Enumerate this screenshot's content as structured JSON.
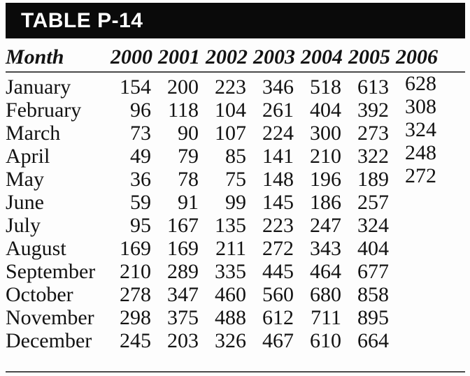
{
  "table": {
    "title": "TABLE P-14",
    "columns": [
      "Month",
      "2000",
      "2001",
      "2002",
      "2003",
      "2004",
      "2005",
      "2006"
    ],
    "rows": [
      {
        "month": "January",
        "values": [
          "154",
          "200",
          "223",
          "346",
          "518",
          "613",
          "628"
        ]
      },
      {
        "month": "February",
        "values": [
          "96",
          "118",
          "104",
          "261",
          "404",
          "392",
          "308"
        ]
      },
      {
        "month": "March",
        "values": [
          "73",
          "90",
          "107",
          "224",
          "300",
          "273",
          "324"
        ]
      },
      {
        "month": "April",
        "values": [
          "49",
          "79",
          "85",
          "141",
          "210",
          "322",
          "248"
        ]
      },
      {
        "month": "May",
        "values": [
          "36",
          "78",
          "75",
          "148",
          "196",
          "189",
          "272"
        ]
      },
      {
        "month": "June",
        "values": [
          "59",
          "91",
          "99",
          "145",
          "186",
          "257",
          ""
        ]
      },
      {
        "month": "July",
        "values": [
          "95",
          "167",
          "135",
          "223",
          "247",
          "324",
          ""
        ]
      },
      {
        "month": "August",
        "values": [
          "169",
          "169",
          "211",
          "272",
          "343",
          "404",
          ""
        ]
      },
      {
        "month": "September",
        "values": [
          "210",
          "289",
          "335",
          "445",
          "464",
          "677",
          ""
        ]
      },
      {
        "month": "October",
        "values": [
          "278",
          "347",
          "460",
          "560",
          "680",
          "858",
          ""
        ]
      },
      {
        "month": "November",
        "values": [
          "298",
          "375",
          "488",
          "612",
          "711",
          "895",
          ""
        ]
      },
      {
        "month": "December",
        "values": [
          "245",
          "203",
          "326",
          "467",
          "610",
          "664",
          ""
        ]
      }
    ]
  },
  "colors": {
    "title_bar_background": "#0a0a0a",
    "title_text": "#ffffff",
    "body_text": "#131313",
    "rule": "#4a4a4a",
    "page_background": "#fdfdfd"
  }
}
